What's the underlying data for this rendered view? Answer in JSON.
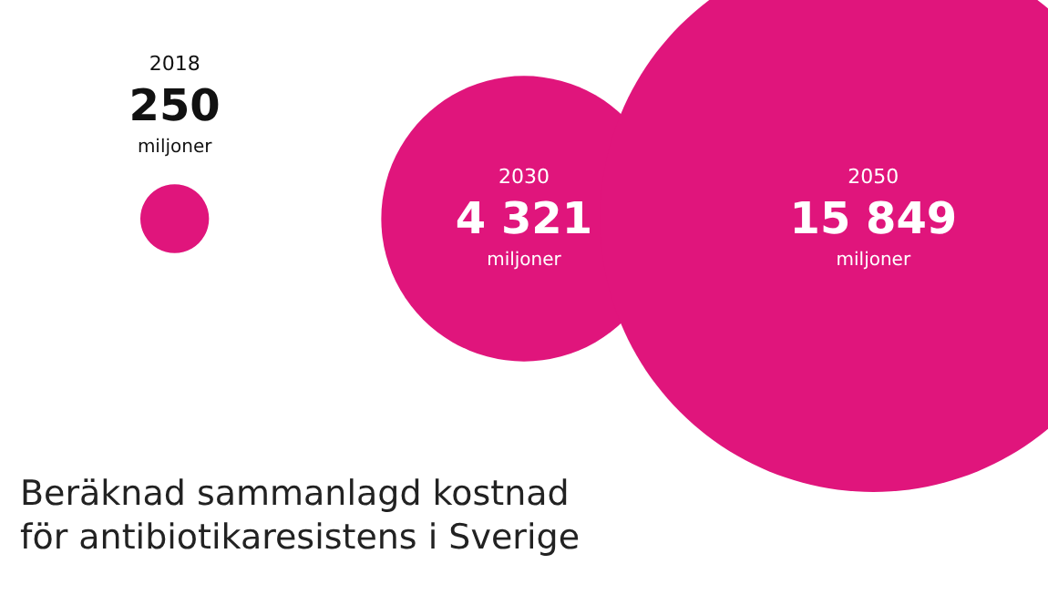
{
  "chart_data": {
    "type": "other",
    "title": "Beräknad sammanlagd kostnad för antibiotikaresistens i Sverige",
    "categories": [
      "2018",
      "2030",
      "2050"
    ],
    "values": [
      250,
      4321,
      15849
    ],
    "value_labels": [
      "250 miljoner",
      "4 321 miljoner",
      "15 849 miljoner"
    ],
    "color": "#e0157c"
  }
}
